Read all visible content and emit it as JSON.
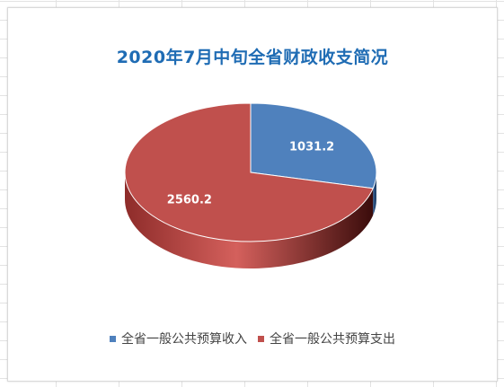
{
  "chart_data": {
    "type": "pie",
    "title": "2020年7月中旬全省财政收支简况",
    "categories": [
      "全省一般公共预算收入",
      "全省一般公共预算支出"
    ],
    "values": [
      1031.2,
      2560.2
    ],
    "data_labels": [
      "1031.2",
      "2560.2"
    ],
    "colors": [
      "#4f81bd",
      "#c0504d"
    ],
    "legend": "bottom",
    "style": "3d"
  }
}
